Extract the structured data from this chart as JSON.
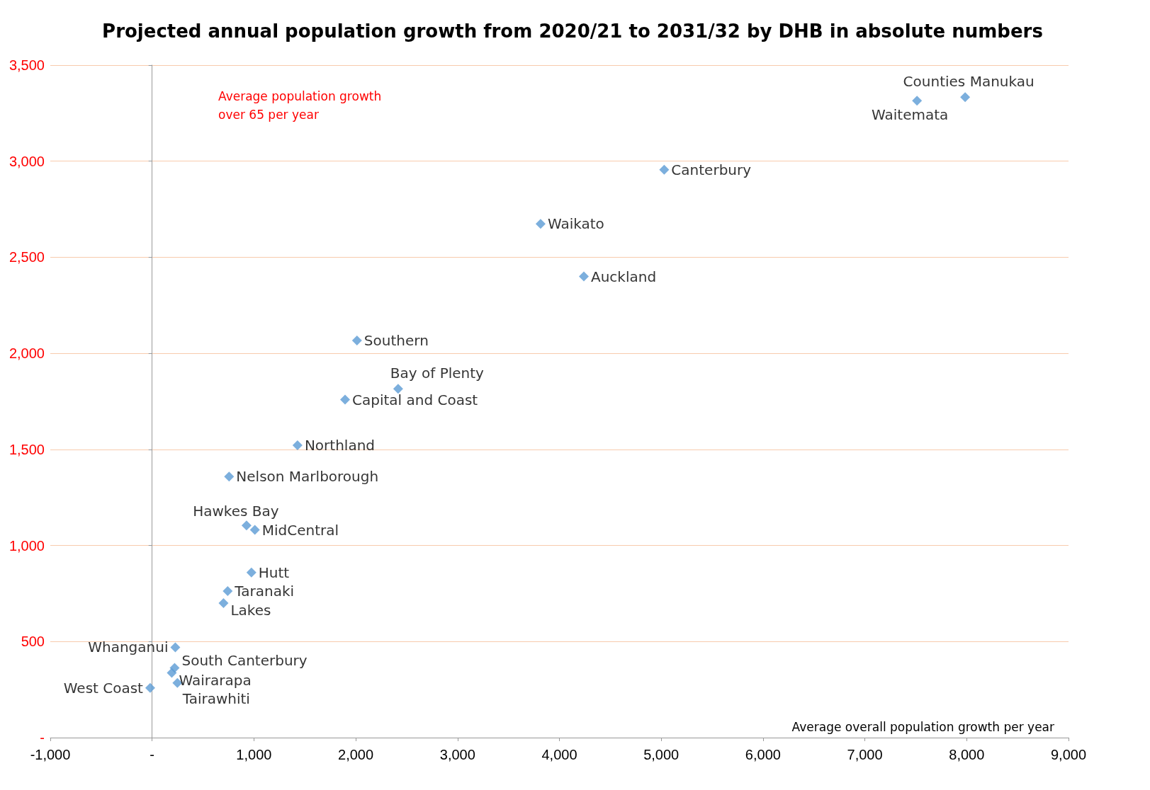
{
  "chart_data": {
    "type": "scatter",
    "title": "Projected annual population growth from 2020/21 to 2031/32 by DHB in absolute numbers",
    "xlabel": "Average overall population growth per year",
    "ylabel": "Average population growth\nover 65 per year",
    "x": [
      7985,
      7512,
      5029,
      3815,
      4240,
      2012,
      2416,
      1895,
      1428,
      756,
      927,
      1009,
      975,
      742,
      701,
      228,
      221,
      193,
      248,
      -19
    ],
    "values": [
      3333,
      3315,
      2956,
      2674,
      2400,
      2067,
      1815,
      1759,
      1522,
      1359,
      1104,
      1081,
      859,
      763,
      700,
      470,
      363,
      337,
      285,
      259
    ],
    "color": "#5b9bd5",
    "marker": "diamond",
    "annotations": [
      {
        "text": "Counties Manukau",
        "x": 7985,
        "y": 3333
      },
      {
        "text": "Waitemata",
        "x": 7512,
        "y": 3315
      },
      {
        "text": "Canterbury",
        "x": 5029,
        "y": 2956
      },
      {
        "text": "Waikato",
        "x": 3815,
        "y": 2674
      },
      {
        "text": "Auckland",
        "x": 4240,
        "y": 2400
      },
      {
        "text": "Southern",
        "x": 2012,
        "y": 2067
      },
      {
        "text": "Bay of Plenty",
        "x": 2416,
        "y": 1815
      },
      {
        "text": "Capital and Coast",
        "x": 1895,
        "y": 1759
      },
      {
        "text": "Northland",
        "x": 1428,
        "y": 1522
      },
      {
        "text": "Nelson Marlborough",
        "x": 756,
        "y": 1359
      },
      {
        "text": "Hawkes Bay",
        "x": 927,
        "y": 1104
      },
      {
        "text": "MidCentral",
        "x": 1009,
        "y": 1081
      },
      {
        "text": "Hutt",
        "x": 975,
        "y": 859
      },
      {
        "text": "Taranaki",
        "x": 742,
        "y": 763
      },
      {
        "text": "Lakes",
        "x": 701,
        "y": 700
      },
      {
        "text": "Whanganui",
        "x": 228,
        "y": 470
      },
      {
        "text": "South Canterbury",
        "x": 221,
        "y": 363
      },
      {
        "text": "Wairarapa",
        "x": 193,
        "y": 337
      },
      {
        "text": "Tairawhiti",
        "x": 248,
        "y": 285
      },
      {
        "text": "West Coast",
        "x": -19,
        "y": 259
      }
    ],
    "xlim": [
      -1000,
      9000
    ],
    "xticks": [
      {
        "value": -1000,
        "label": "-1,000"
      },
      {
        "value": 0,
        "label": "-"
      },
      {
        "value": 1000,
        "label": "1,000"
      },
      {
        "value": 2000,
        "label": "2,000"
      },
      {
        "value": 3000,
        "label": "3,000"
      },
      {
        "value": 4000,
        "label": "4,000"
      },
      {
        "value": 5000,
        "label": "5,000"
      },
      {
        "value": 6000,
        "label": "6,000"
      },
      {
        "value": 7000,
        "label": "7,000"
      },
      {
        "value": 8000,
        "label": "8,000"
      },
      {
        "value": 9000,
        "label": "9,000"
      }
    ],
    "ylim": [
      0,
      3500
    ],
    "yticks": [
      {
        "value": 0,
        "label": "-"
      },
      500,
      {
        "value": 1000,
        "label": "1,000"
      },
      {
        "value": 1500,
        "label": "1,500"
      },
      {
        "value": 2000,
        "label": "2,000"
      },
      {
        "value": 2500,
        "label": "2,500"
      },
      {
        "value": 3000,
        "label": "3,000"
      },
      {
        "value": 3500,
        "label": "3,500"
      }
    ],
    "grid": "y"
  }
}
